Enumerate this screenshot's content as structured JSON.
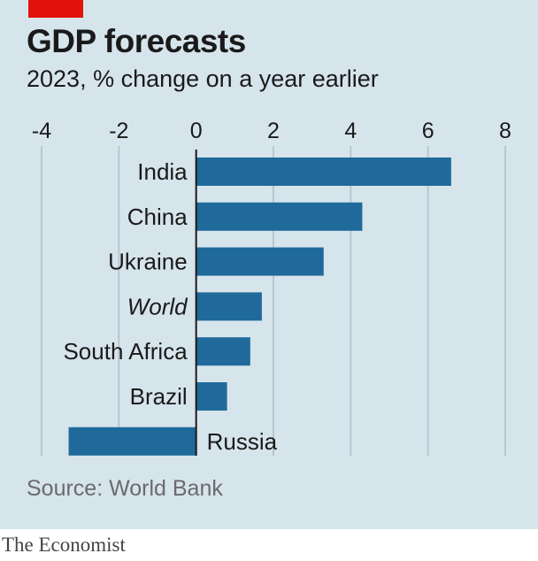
{
  "header": {
    "title": "GDP forecasts",
    "subtitle": "2023, % change on a year earlier"
  },
  "footer": {
    "source": "Source: World Bank",
    "brand": "The Economist"
  },
  "colors": {
    "bar": "#1f6a9a",
    "background": "#d6e4ec",
    "accent": "#e3120b",
    "grid": "#b9c6cf",
    "zero_line": "#1a1a1a"
  },
  "chart_data": {
    "type": "bar",
    "orientation": "horizontal",
    "title": "GDP forecasts",
    "subtitle": "2023, % change on a year earlier",
    "xlabel": "",
    "ylabel": "",
    "xlim": [
      -4,
      8
    ],
    "xticks": [
      -4,
      -2,
      0,
      2,
      4,
      6,
      8
    ],
    "tick_labels": [
      "-4",
      "-2",
      "0",
      "2",
      "4",
      "6",
      "8"
    ],
    "grid": "vertical",
    "categories": [
      "India",
      "China",
      "Ukraine",
      "World",
      "South Africa",
      "Brazil",
      "Russia"
    ],
    "italic_categories": [
      "World"
    ],
    "values": [
      6.6,
      4.3,
      3.3,
      1.7,
      1.4,
      0.8,
      -3.3
    ]
  }
}
